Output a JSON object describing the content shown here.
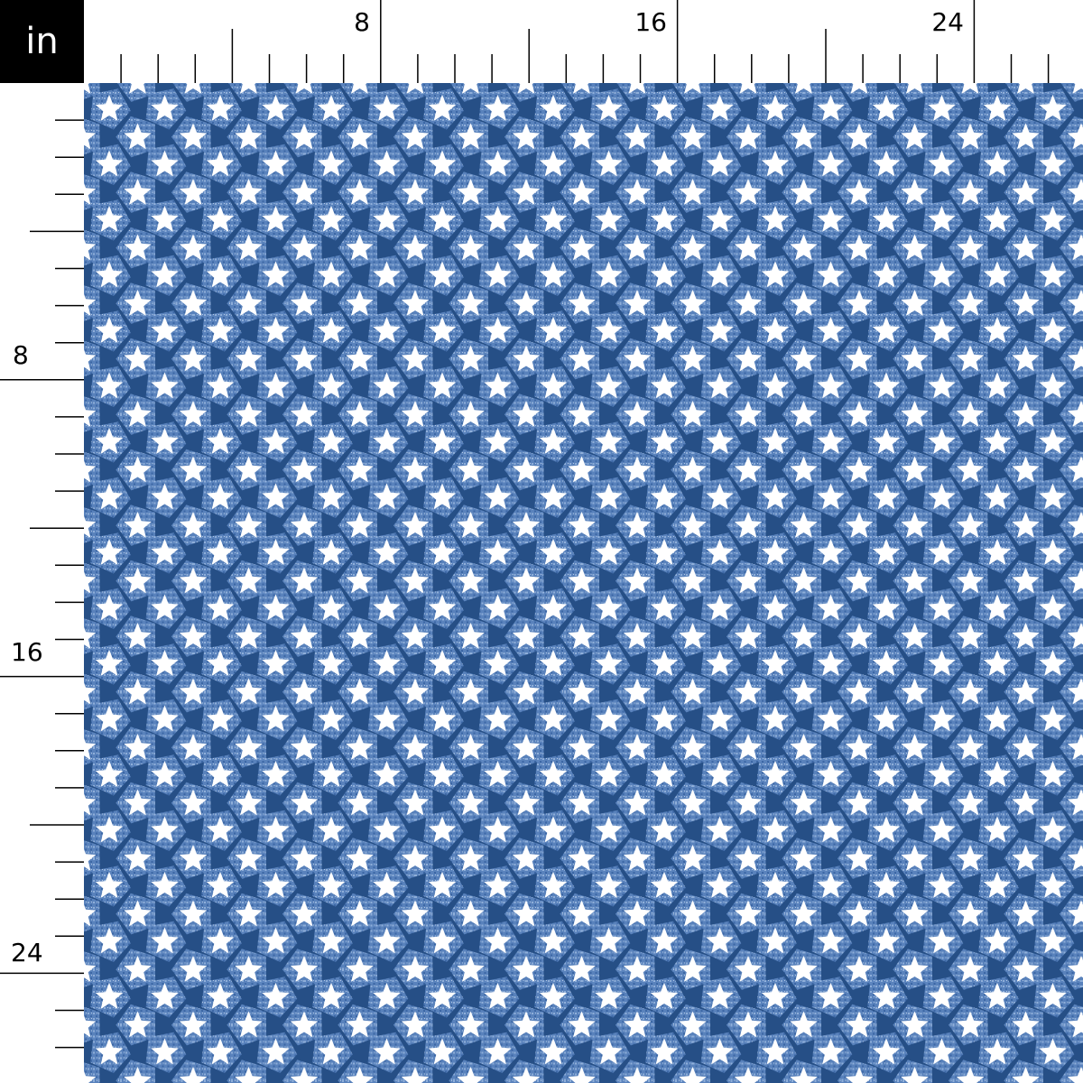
{
  "unit_label": "in",
  "ruler": {
    "top_labels": [
      "8",
      "16",
      "24"
    ],
    "left_labels": [
      "8",
      "16",
      "24"
    ]
  },
  "pattern": {
    "motif": "white-star-on-blue-glitter",
    "colors": {
      "background": "#264f86",
      "glitter": "#6c93cc",
      "glitter_dark": "#3a67a5",
      "star": "#ffffff"
    }
  }
}
